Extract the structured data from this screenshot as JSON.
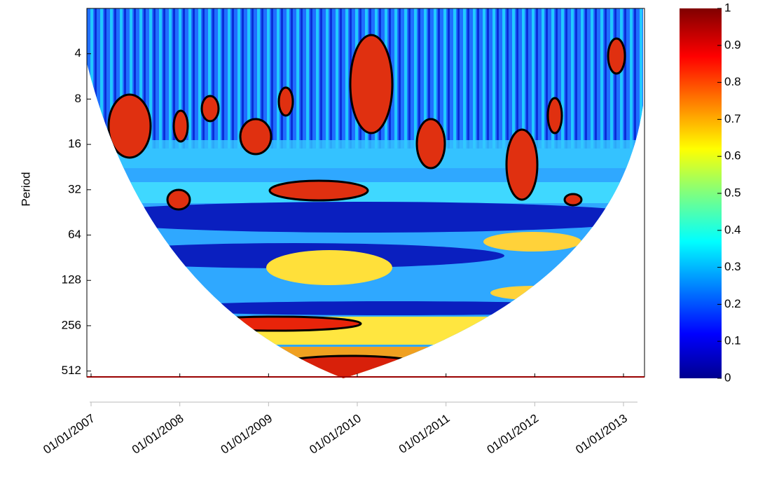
{
  "chart_data": {
    "type": "heatmap",
    "ylabel": "Period",
    "ylog": true,
    "yreversed": true,
    "ylim": [
      2,
      560
    ],
    "yticks": [
      4,
      8,
      16,
      32,
      64,
      128,
      256,
      512
    ],
    "xticks": [
      "01/01/2007",
      "01/01/2008",
      "01/01/2009",
      "01/01/2010",
      "01/01/2011",
      "01/01/2012",
      "01/01/2013"
    ],
    "colorbar": {
      "lim": [
        0,
        1
      ],
      "ticks": [
        0,
        0.1,
        0.2,
        0.3,
        0.4,
        0.5,
        0.6,
        0.7,
        0.8,
        0.9,
        1
      ],
      "colormap": "jet"
    }
  }
}
